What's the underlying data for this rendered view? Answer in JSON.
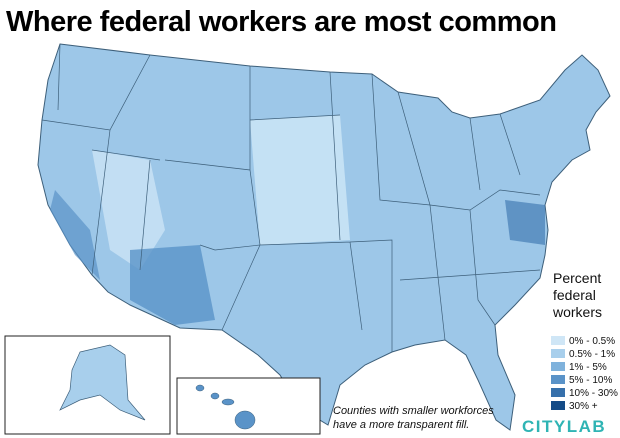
{
  "title": "Where federal workers are most common",
  "legend": {
    "title": [
      "Percent",
      "federal",
      "workers"
    ],
    "items": [
      {
        "label": "0% - 0.5%",
        "color": "#cfe6f6"
      },
      {
        "label": "0.5% - 1%",
        "color": "#a8cfec"
      },
      {
        "label": "1% - 5%",
        "color": "#7fb2dc"
      },
      {
        "label": "5% - 10%",
        "color": "#5a93c8"
      },
      {
        "label": "10% - 30%",
        "color": "#3670ab"
      },
      {
        "label": "30% +",
        "color": "#144b87"
      }
    ]
  },
  "note": [
    "Counties with smaller workforces",
    "have a more transparent fill."
  ],
  "logo": "CITYLAB"
}
